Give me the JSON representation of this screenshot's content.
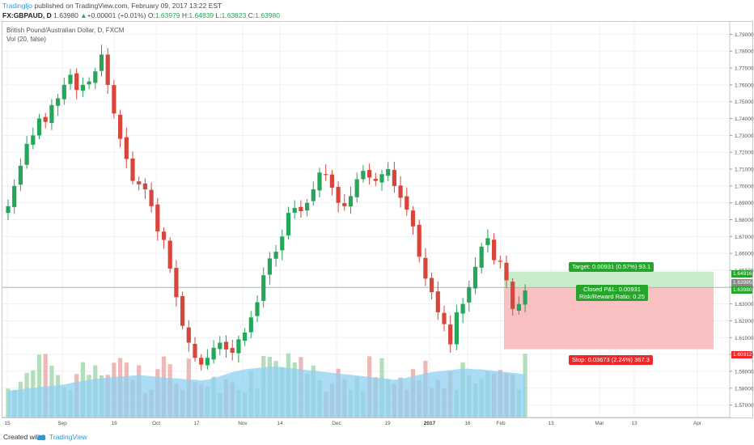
{
  "header": {
    "author": "Tradingljo",
    "published": " published on TradingView.com, February 09, 2017 13:22 EST",
    "symbol": "FX:GBPAUD, D",
    "last": "1.63980",
    "change": "+0.00001 (+0.01%)",
    "o_label": "O:",
    "o_value": "1.63979",
    "h_label": "H:",
    "h_value": "1.64839",
    "l_label": "L:",
    "l_value": "1.63823",
    "c_label": "C:",
    "c_value": "1.63980"
  },
  "legend": {
    "series": "British Pound/Australian Dollar, D, FXCM",
    "volume": "Vol (20, false)"
  },
  "position": {
    "target": "Target: 0.00931 (0.57%) 93.1",
    "closed_pnl": "Closed P&L: 0.00931",
    "risk_reward": "Risk/Reward Ratio: 0.25",
    "stop": "Stop: 0.03673 (2.24%) 367.3"
  },
  "price_labels": {
    "target": "1.64916",
    "last": "1.63985",
    "entry": "1.63980",
    "stop": "1.60312"
  },
  "footer": {
    "created_with": "Created with",
    "brand": "TradingView"
  },
  "colors": {
    "up": "#26a65b",
    "down": "#d8453a",
    "volume_up": "#9fd6a7",
    "volume_down": "#e9a8a4",
    "volume_ma": "#8fd0f2",
    "target_zone": "#c8eccb",
    "stop_zone": "#f9c1c1"
  },
  "chart_data": {
    "type": "candlestick",
    "symbol": "FX:GBPAUD",
    "interval": "D",
    "x_ticks": [
      "15",
      "Sep",
      "19",
      "Oct",
      "17",
      "Nov",
      "14",
      "Dec",
      "19",
      "2017",
      "16",
      "Feb",
      "13",
      "Mar",
      "13",
      "Apr"
    ],
    "y_ticks": [
      "1.79000",
      "1.78000",
      "1.77000",
      "1.76000",
      "1.75000",
      "1.74000",
      "1.73000",
      "1.72000",
      "1.71000",
      "1.70000",
      "1.69000",
      "1.68000",
      "1.67000",
      "1.66000",
      "1.65000",
      "1.64000",
      "1.63000",
      "1.62000",
      "1.61000",
      "1.60000",
      "1.59000",
      "1.58000",
      "1.57000"
    ],
    "ylim": [
      1.565,
      1.795
    ],
    "series": [
      {
        "name": "",
        "close": [
          1.688,
          1.7,
          1.712,
          1.725,
          1.73,
          1.74,
          1.738,
          1.748,
          1.752,
          1.76,
          1.766,
          1.757,
          1.76,
          1.762,
          1.768,
          1.778,
          1.76,
          1.743,
          1.728,
          1.716,
          1.703,
          1.701,
          1.698,
          1.688,
          1.673,
          1.668,
          1.651,
          1.634,
          1.617,
          1.607,
          1.598,
          1.594,
          1.598,
          1.604,
          1.607,
          1.603,
          1.601,
          1.609,
          1.613,
          1.622,
          1.631,
          1.647,
          1.657,
          1.661,
          1.67,
          1.684,
          1.687,
          1.685,
          1.69,
          1.698,
          1.708,
          1.707,
          1.699,
          1.69,
          1.688,
          1.694,
          1.704,
          1.709,
          1.705,
          1.703,
          1.707,
          1.71,
          1.7,
          1.693,
          1.686,
          1.676,
          1.658,
          1.645,
          1.637,
          1.625,
          1.618,
          1.606,
          1.625,
          1.63,
          1.64,
          1.652,
          1.664,
          1.669,
          1.656,
          1.655,
          1.644,
          1.627,
          1.63,
          1.638
        ]
      },
      {
        "name": "",
        "volume_ma": [
          0.39,
          0.4,
          0.41,
          0.42,
          0.43,
          0.44,
          0.45,
          0.46,
          0.47,
          0.48,
          0.5,
          0.52,
          0.53,
          0.55,
          0.56,
          0.57,
          0.58,
          0.59,
          0.6,
          0.6,
          0.61,
          0.61,
          0.61,
          0.6,
          0.59,
          0.58,
          0.57,
          0.57,
          0.56,
          0.55,
          0.55,
          0.54,
          0.55,
          0.57,
          0.6,
          0.63,
          0.66,
          0.68,
          0.7,
          0.71,
          0.72,
          0.73,
          0.74,
          0.74,
          0.73,
          0.72,
          0.71,
          0.7,
          0.69,
          0.68,
          0.67,
          0.66,
          0.65,
          0.64,
          0.63,
          0.62,
          0.61,
          0.6,
          0.59,
          0.58,
          0.57,
          0.56,
          0.55,
          0.56,
          0.58,
          0.6,
          0.62,
          0.64,
          0.66,
          0.67,
          0.68,
          0.69,
          0.7,
          0.71,
          0.71,
          0.7,
          0.7,
          0.69,
          0.68,
          0.67,
          0.66,
          0.65,
          0.64,
          0.63
        ]
      }
    ],
    "position": {
      "side": "long",
      "entry": 1.6398,
      "target": 1.64916,
      "stop": 1.60312
    }
  }
}
